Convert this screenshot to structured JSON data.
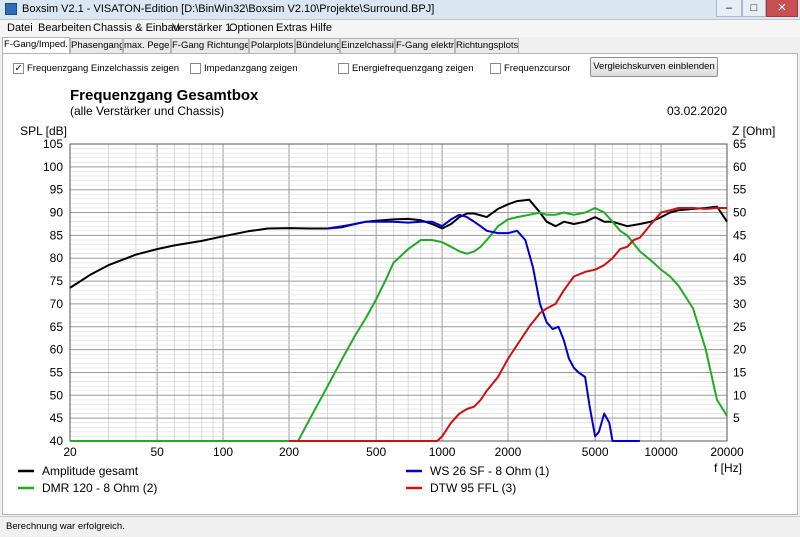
{
  "window": {
    "title": "Boxsim V2.1 - VISATON-Edition [D:\\BinWin32\\Boxsim V2.10\\Projekte\\Surround.BPJ]",
    "btn_min": "–",
    "btn_max": "□",
    "btn_close": "✕"
  },
  "menu": [
    "Datei",
    "Bearbeiten",
    "Chassis & Einbau",
    "Verstärker 1",
    "Optionen",
    "Extras",
    "Hilfe"
  ],
  "tabs": [
    "F-Gang/Imped.",
    "Phasengang",
    "max. Pegel",
    "F-Gang Richtungen",
    "Polarplots",
    "Bündelung",
    "Einzelchassis",
    "F-Gang elektr.",
    "Richtungsplots"
  ],
  "options": {
    "einzelchassis": {
      "label": "Frequenzgang Einzelchassis zeigen",
      "checked": true,
      "mark": "✓"
    },
    "impedanz": {
      "label": "Impedanzgang zeigen",
      "checked": false
    },
    "energie": {
      "label": "Energiefrequenzgang zeigen",
      "checked": false
    },
    "cursor": {
      "label": "Frequenzcursor",
      "checked": false
    },
    "button": "Vergleichskurven einblenden"
  },
  "status": "Berechnung war erfolgreich.",
  "chart_data": {
    "type": "line",
    "title": "Frequenzgang Gesamtbox",
    "subtitle": "(alle Verstärker und Chassis)",
    "date": "03.02.2020",
    "ylabel": "SPL [dB]",
    "y2label": "Z [Ohm]",
    "xlabel": "f [Hz]",
    "xscale": "log",
    "xlim": [
      20,
      20000
    ],
    "ylim": [
      40,
      105
    ],
    "y2lim": [
      0,
      65
    ],
    "grid": true,
    "yticks": [
      40,
      45,
      50,
      55,
      60,
      65,
      70,
      75,
      80,
      85,
      90,
      95,
      100,
      105
    ],
    "y2ticks": [
      5,
      10,
      15,
      20,
      25,
      30,
      35,
      40,
      45,
      50,
      55,
      60,
      65
    ],
    "xtick_labels": [
      [
        "20",
        20
      ],
      [
        "50",
        50
      ],
      [
        "100",
        100
      ],
      [
        "200",
        200
      ],
      [
        "500",
        500
      ],
      [
        "1000",
        1000
      ],
      [
        "2000",
        2000
      ],
      [
        "5000",
        5000
      ],
      [
        "10000",
        10000
      ],
      [
        "20000",
        20000
      ]
    ],
    "series": [
      {
        "name": "Amplitude gesamt",
        "color": "#000000",
        "x": [
          20,
          25,
          30,
          40,
          50,
          60,
          80,
          100,
          130,
          160,
          200,
          250,
          300,
          350,
          400,
          450,
          500,
          600,
          700,
          800,
          900,
          1000,
          1100,
          1200,
          1300,
          1400,
          1600,
          1800,
          2000,
          2200,
          2500,
          2800,
          3000,
          3300,
          3600,
          4000,
          4500,
          5000,
          5500,
          6000,
          7000,
          8000,
          9000,
          10000,
          11000,
          12000,
          14000,
          16000,
          18000,
          20000
        ],
        "y": [
          73.5,
          76.5,
          78.5,
          80.8,
          82,
          82.8,
          83.8,
          84.8,
          85.9,
          86.5,
          86.6,
          86.5,
          86.5,
          86.8,
          87.5,
          88,
          88.2,
          88.5,
          88.6,
          88.3,
          87.5,
          86.5,
          87.5,
          89,
          89.8,
          89.8,
          89,
          90.8,
          91.8,
          92.5,
          92.8,
          90,
          88,
          87,
          88,
          87.5,
          88,
          89,
          88,
          88,
          87,
          87.5,
          88,
          89,
          90,
          90.5,
          90.8,
          91,
          91.3,
          88
        ]
      },
      {
        "name": "DMR 120 - 8 Ohm (2)",
        "color": "#22aa22",
        "x": [
          20,
          100,
          150,
          200,
          220,
          250,
          300,
          350,
          400,
          450,
          500,
          550,
          600,
          700,
          800,
          900,
          1000,
          1100,
          1200,
          1300,
          1400,
          1500,
          1600,
          1700,
          1800,
          2000,
          2200,
          2500,
          2800,
          3000,
          3300,
          3600,
          4000,
          4500,
          5000,
          5500,
          6000,
          6500,
          7000,
          8000,
          9000,
          10000,
          11000,
          12000,
          14000,
          16000,
          18000,
          20000
        ],
        "y": [
          40,
          40,
          40,
          40,
          40,
          45,
          52,
          58,
          63,
          67,
          71,
          75,
          79,
          82,
          84,
          84,
          83.5,
          82.5,
          81.5,
          81,
          81.5,
          82.5,
          84,
          85.5,
          87,
          88.5,
          89,
          89.5,
          90,
          89.5,
          89.5,
          90,
          89.5,
          90,
          91,
          90,
          88,
          86,
          85,
          81.5,
          79.5,
          77.5,
          76,
          74,
          69,
          60,
          49,
          45.5
        ]
      },
      {
        "name": "WS 26 SF - 8 Ohm  (1)",
        "color": "#0000cc",
        "x": [
          300,
          350,
          400,
          450,
          500,
          600,
          700,
          800,
          900,
          1000,
          1100,
          1200,
          1300,
          1400,
          1500,
          1600,
          1800,
          2000,
          2200,
          2400,
          2600,
          2800,
          3000,
          3200,
          3400,
          3600,
          3800,
          4000,
          4200,
          4500,
          4700,
          5000,
          5200,
          5500,
          5800,
          6000,
          6300,
          6500,
          7000,
          8000
        ],
        "y": [
          86.5,
          87,
          87.5,
          88,
          88,
          88,
          87.8,
          88,
          88,
          87,
          88.5,
          89.5,
          89,
          88,
          87,
          86,
          85.5,
          85.5,
          86,
          84,
          78,
          70,
          66,
          64.5,
          65,
          62,
          58,
          56,
          55,
          54,
          48,
          41,
          42,
          46,
          44,
          40,
          40,
          40,
          40,
          40
        ]
      },
      {
        "name": "DTW 95 FFL (3)",
        "color": "#cc1111",
        "x": [
          200,
          500,
          800,
          950,
          1000,
          1100,
          1200,
          1300,
          1400,
          1500,
          1600,
          1800,
          2000,
          2200,
          2500,
          2800,
          3000,
          3300,
          3600,
          4000,
          4500,
          5000,
          5500,
          6000,
          6500,
          7000,
          7500,
          8000,
          9000,
          10000,
          11000,
          12000,
          14000,
          16000,
          18000,
          20000
        ],
        "y": [
          40,
          40,
          40,
          40,
          41,
          44,
          46,
          47,
          47.5,
          49,
          51,
          54,
          58,
          61,
          65,
          68,
          69,
          70,
          73,
          76,
          77,
          77.5,
          78.5,
          80,
          82,
          82.5,
          84,
          84.5,
          87.5,
          90,
          90.5,
          91,
          91,
          90.8,
          91,
          91
        ]
      }
    ]
  }
}
